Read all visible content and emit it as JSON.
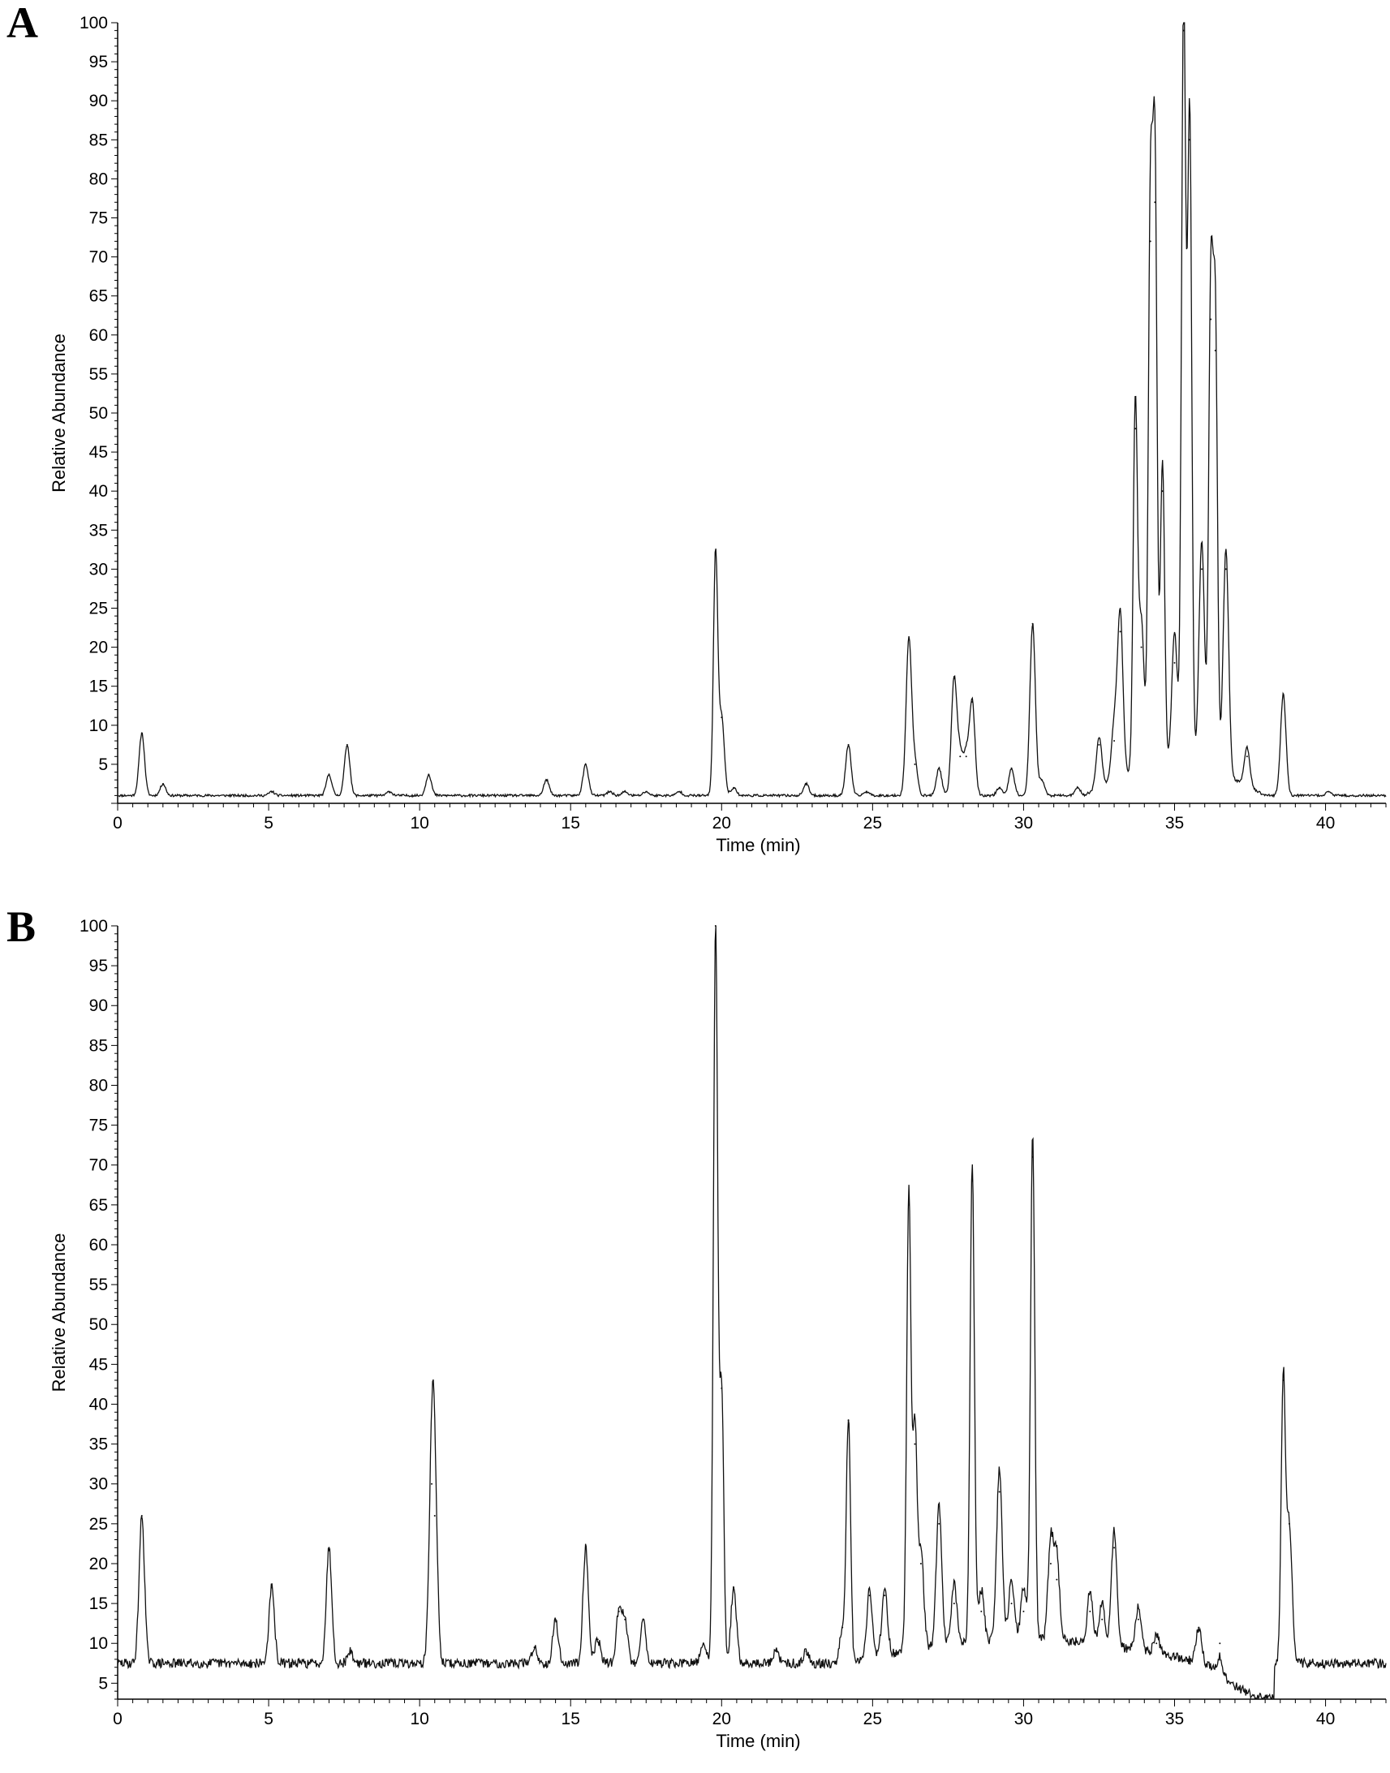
{
  "chart_data": [
    {
      "panel": "A",
      "type": "line",
      "xlabel": "Time (min)",
      "ylabel": "Relative Abundance",
      "xlim": [
        0,
        42
      ],
      "ylim": [
        0,
        100
      ],
      "x_ticks": [
        "0",
        "5",
        "10",
        "15",
        "20",
        "25",
        "30",
        "35",
        "40"
      ],
      "y_ticks": [
        "5",
        "10",
        "15",
        "20",
        "25",
        "30",
        "35",
        "40",
        "45",
        "50",
        "55",
        "60",
        "65",
        "70",
        "75",
        "80",
        "85",
        "90",
        "95",
        "100"
      ],
      "baseline": 1,
      "peaks": [
        [
          0.8,
          9
        ],
        [
          1.5,
          2.5
        ],
        [
          5.1,
          1.5
        ],
        [
          7.0,
          3.7
        ],
        [
          7.6,
          7.5
        ],
        [
          9.0,
          1.5
        ],
        [
          10.3,
          3.7
        ],
        [
          14.2,
          3
        ],
        [
          15.5,
          5
        ],
        [
          16.3,
          1.5
        ],
        [
          16.8,
          1.5
        ],
        [
          17.5,
          1.5
        ],
        [
          18.6,
          1.5
        ],
        [
          19.8,
          32
        ],
        [
          20.0,
          11
        ],
        [
          20.4,
          2
        ],
        [
          22.8,
          2.5
        ],
        [
          24.2,
          7.5
        ],
        [
          24.8,
          1.5
        ],
        [
          26.2,
          21
        ],
        [
          26.4,
          5
        ],
        [
          27.2,
          4.5
        ],
        [
          27.7,
          16
        ],
        [
          27.9,
          6
        ],
        [
          28.1,
          6
        ],
        [
          28.3,
          13
        ],
        [
          29.2,
          2
        ],
        [
          29.6,
          4.5
        ],
        [
          30.3,
          23
        ],
        [
          30.6,
          3
        ],
        [
          31.8,
          2
        ],
        [
          32.5,
          7.5
        ],
        [
          33.0,
          8
        ],
        [
          33.2,
          22
        ],
        [
          33.7,
          48
        ],
        [
          33.9,
          20
        ],
        [
          34.2,
          72
        ],
        [
          34.35,
          77
        ],
        [
          34.6,
          40
        ],
        [
          35.0,
          18
        ],
        [
          35.3,
          99
        ],
        [
          35.5,
          85
        ],
        [
          35.9,
          30
        ],
        [
          36.2,
          62
        ],
        [
          36.35,
          58
        ],
        [
          36.7,
          30
        ],
        [
          37.4,
          6
        ],
        [
          38.6,
          14
        ],
        [
          40.1,
          1.5
        ]
      ]
    },
    {
      "panel": "B",
      "type": "line",
      "xlabel": "Time (min)",
      "ylabel": "Relative Abundance",
      "xlim": [
        0,
        42
      ],
      "ylim": [
        3,
        100
      ],
      "x_ticks": [
        "0",
        "5",
        "10",
        "15",
        "20",
        "25",
        "30",
        "35",
        "40"
      ],
      "y_ticks": [
        "5",
        "10",
        "15",
        "20",
        "25",
        "30",
        "35",
        "40",
        "45",
        "50",
        "55",
        "60",
        "65",
        "70",
        "75",
        "80",
        "85",
        "90",
        "95",
        "100"
      ],
      "baseline": 7.5,
      "peaks": [
        [
          0.8,
          26
        ],
        [
          5.1,
          17
        ],
        [
          7.0,
          22
        ],
        [
          7.7,
          9
        ],
        [
          10.4,
          30
        ],
        [
          10.5,
          26
        ],
        [
          13.8,
          9.5
        ],
        [
          14.5,
          13
        ],
        [
          15.5,
          22
        ],
        [
          15.9,
          10.5
        ],
        [
          16.6,
          14
        ],
        [
          16.8,
          13
        ],
        [
          17.4,
          13
        ],
        [
          19.4,
          10
        ],
        [
          19.8,
          100
        ],
        [
          20.0,
          42
        ],
        [
          20.4,
          17
        ],
        [
          21.8,
          9
        ],
        [
          22.8,
          9
        ],
        [
          24.0,
          12
        ],
        [
          24.2,
          38
        ],
        [
          24.9,
          16
        ],
        [
          25.4,
          16
        ],
        [
          26.2,
          65
        ],
        [
          26.4,
          35
        ],
        [
          26.6,
          20
        ],
        [
          27.2,
          25
        ],
        [
          27.7,
          15
        ],
        [
          28.3,
          68
        ],
        [
          28.6,
          14
        ],
        [
          29.2,
          29
        ],
        [
          29.6,
          15
        ],
        [
          30.0,
          14
        ],
        [
          30.3,
          71
        ],
        [
          30.9,
          20
        ],
        [
          31.1,
          18
        ],
        [
          32.2,
          14
        ],
        [
          32.6,
          13
        ],
        [
          33.0,
          22
        ],
        [
          33.8,
          13
        ],
        [
          34.4,
          10
        ],
        [
          35.8,
          12
        ],
        [
          36.5,
          10
        ],
        [
          38.6,
          43
        ],
        [
          38.8,
          25
        ],
        [
          40.5,
          7.5
        ]
      ]
    }
  ]
}
